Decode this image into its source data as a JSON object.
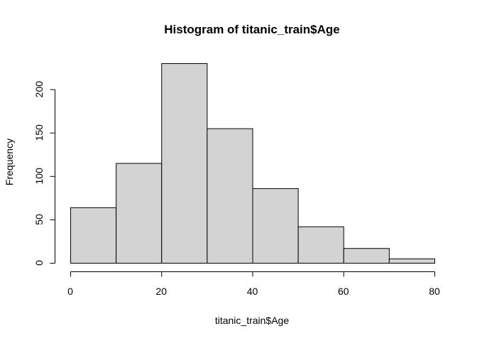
{
  "chart_data": {
    "type": "bar",
    "title": "Histogram of titanic_train$Age",
    "xlabel": "titanic_train$Age",
    "ylabel": "Frequency",
    "bins": [
      {
        "start": 0,
        "end": 10,
        "count": 64
      },
      {
        "start": 10,
        "end": 20,
        "count": 115
      },
      {
        "start": 20,
        "end": 30,
        "count": 230
      },
      {
        "start": 30,
        "end": 40,
        "count": 155
      },
      {
        "start": 40,
        "end": 50,
        "count": 86
      },
      {
        "start": 50,
        "end": 60,
        "count": 42
      },
      {
        "start": 60,
        "end": 70,
        "count": 17
      },
      {
        "start": 70,
        "end": 80,
        "count": 5
      }
    ],
    "xlim": [
      0,
      80
    ],
    "ylim": [
      0,
      230
    ],
    "x_ticks": [
      0,
      20,
      40,
      60,
      80
    ],
    "y_ticks": [
      0,
      50,
      100,
      150,
      200
    ],
    "bar_color": "#d3d3d3",
    "edge_color": "#000000",
    "grid": false
  }
}
